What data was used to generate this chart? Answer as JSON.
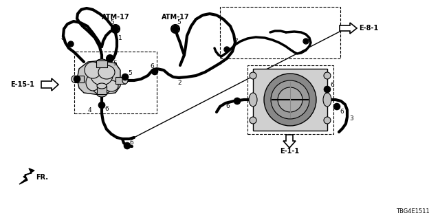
{
  "bg_color": "#ffffff",
  "part_number": "TBG4E1511",
  "line_color": "#000000",
  "e15_label": "E-15-1",
  "e8_label": "E-8-1",
  "e1_label": "E-1-1",
  "fr_label": "FR.",
  "atm_label": "ATM-17"
}
